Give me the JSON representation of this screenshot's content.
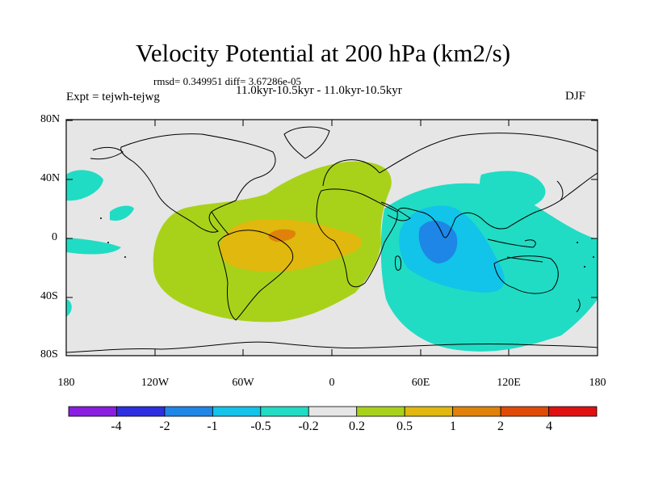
{
  "title": "Velocity Potential at 200 hPa (km2/s)",
  "stats": "rmsd= 0.349951 diff= 3.67286e-05",
  "experiment": "Expt = tejwh-tejwg",
  "period": "11.0kyr-10.5kyr - 11.0kyr-10.5kyr",
  "season": "DJF",
  "lat_ticks": [
    "80N",
    "40N",
    "0",
    "40S",
    "80S"
  ],
  "lon_ticks": [
    "180",
    "120W",
    "60W",
    "0",
    "60E",
    "120E",
    "180"
  ],
  "colorbar": {
    "labels": [
      "-4",
      "-2",
      "-1",
      "-0.5",
      "-0.2",
      "0.2",
      "0.5",
      "1",
      "2",
      "4"
    ],
    "colors": [
      "#8a1de0",
      "#2d2fe0",
      "#1e86e6",
      "#12c3ea",
      "#20dcc4",
      "#e6e6e6",
      "#a8d21a",
      "#e0b80e",
      "#e0820a",
      "#e04a06",
      "#e01010"
    ]
  }
}
